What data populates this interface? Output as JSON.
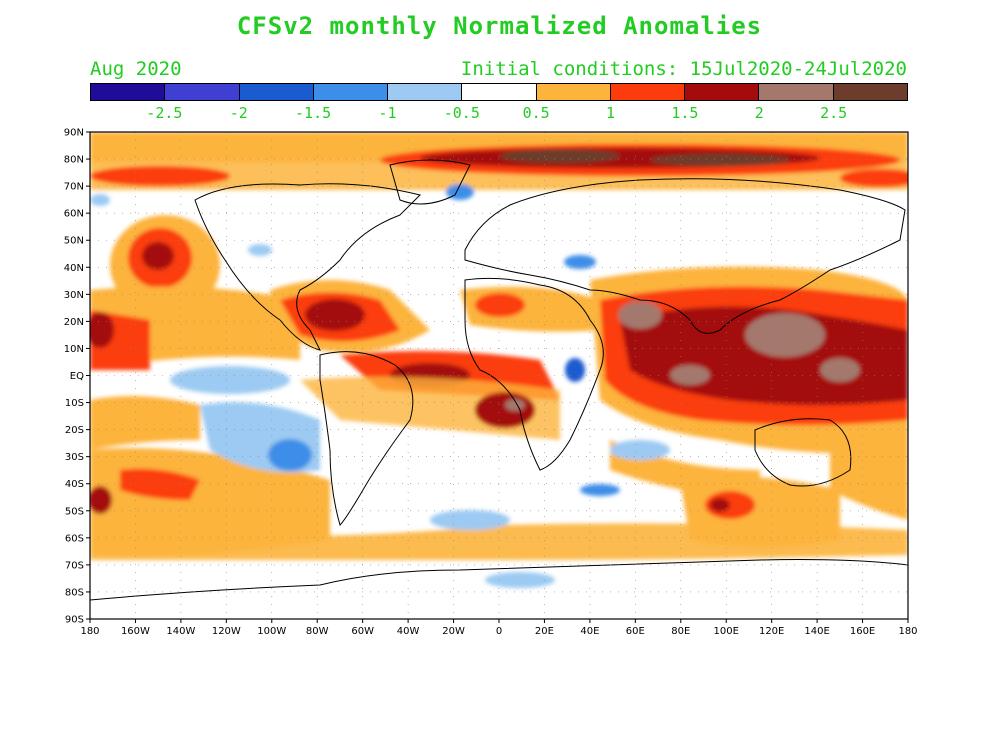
{
  "title": "CFSv2 monthly Normalized Anomalies",
  "subtitle_left": "Aug 2020",
  "subtitle_right": "Initial conditions: 15Jul2020-24Jul2020",
  "colorbar": {
    "colors": [
      "#1f0d9a",
      "#3f3fd4",
      "#1a5cd0",
      "#3d8ee8",
      "#9ccaf2",
      "#ffffff",
      "#fcb43c",
      "#fc3c0c",
      "#a40c0c",
      "#a4786c",
      "#6c3c2c"
    ],
    "labels": [
      "-2.5",
      "-2",
      "-1.5",
      "-1",
      "-0.5",
      "0.5",
      "1",
      "1.5",
      "2",
      "2.5"
    ]
  },
  "map": {
    "lat_labels": [
      "90N",
      "80N",
      "70N",
      "60N",
      "50N",
      "40N",
      "30N",
      "20N",
      "10N",
      "EQ",
      "10S",
      "20S",
      "30S",
      "40S",
      "50S",
      "60S",
      "70S",
      "80S",
      "90S"
    ],
    "lon_labels": [
      "180",
      "160W",
      "140W",
      "120W",
      "100W",
      "80W",
      "60W",
      "40W",
      "20W",
      "0",
      "20E",
      "40E",
      "60E",
      "80E",
      "100E",
      "120E",
      "140E",
      "160E",
      "180"
    ]
  }
}
